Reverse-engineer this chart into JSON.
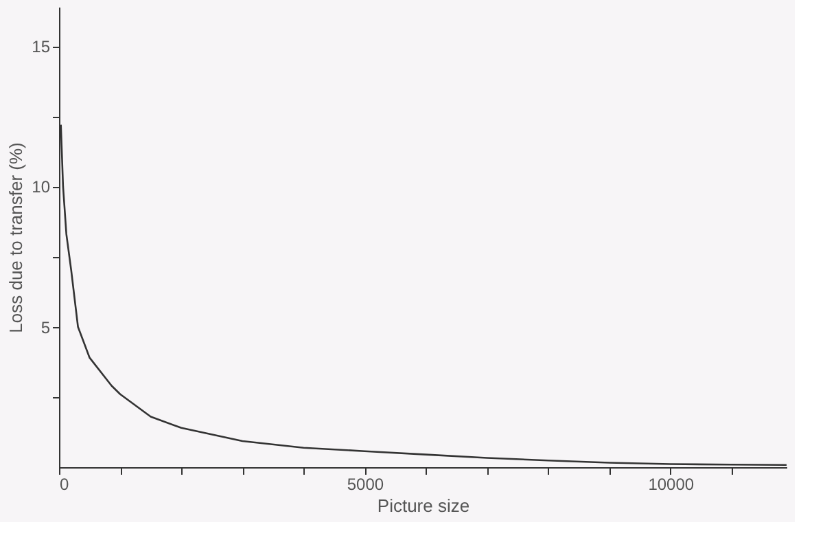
{
  "chart_data": {
    "type": "line",
    "xlabel": "Picture size",
    "ylabel": "Loss due to transfer (%)",
    "x": [
      30,
      66,
      120,
      200,
      310,
      500,
      860,
      1000,
      1500,
      2000,
      3000,
      4000,
      5000,
      6000,
      7000,
      8000,
      9000,
      10000,
      11000,
      11900
    ],
    "series": [
      {
        "color": "#333333",
        "values": [
          12.2,
          10,
          8.3,
          7,
          5,
          3.9,
          2.9,
          2.6,
          1.8,
          1.4,
          0.93,
          0.69,
          0.57,
          0.45,
          0.33,
          0.24,
          0.16,
          0.11,
          0.09,
          0.08
        ]
      }
    ],
    "xlim": [
      0,
      11900
    ],
    "xticks": [
      0,
      {
        "value": 1000,
        "label": null
      },
      {
        "value": 2000,
        "label": null
      },
      {
        "value": 3000,
        "label": null
      },
      {
        "value": 4000,
        "label": null
      },
      5000,
      {
        "value": 6000,
        "label": null
      },
      {
        "value": 7000,
        "label": null
      },
      {
        "value": 8000,
        "label": null
      },
      {
        "value": 9000,
        "label": null
      },
      10000,
      {
        "value": 11000,
        "label": null
      }
    ],
    "ylim": [
      0,
      16.4
    ],
    "yticks": [
      {
        "value": 2.5,
        "label": null
      },
      5,
      {
        "value": 7.5,
        "label": null
      },
      10,
      {
        "value": 12.5,
        "label": null
      },
      15
    ],
    "grid": false,
    "marker": "none",
    "line_style": "solid"
  }
}
